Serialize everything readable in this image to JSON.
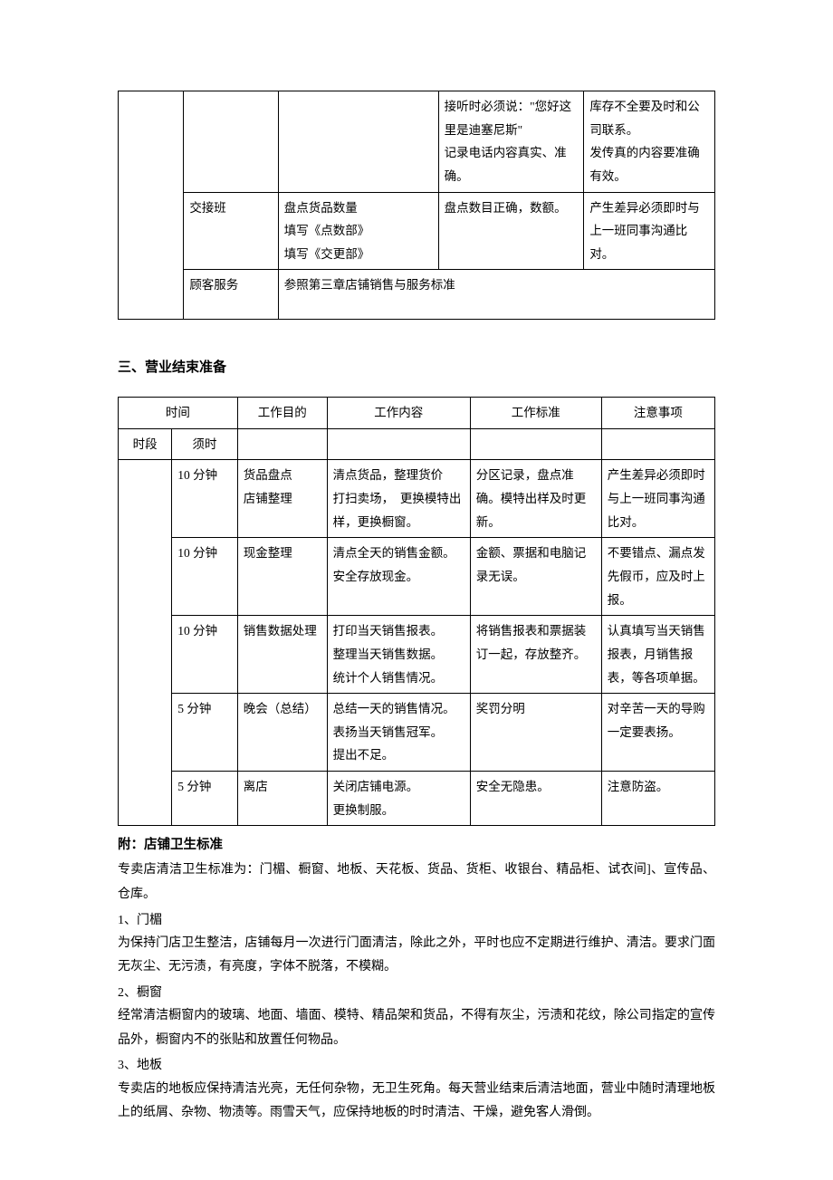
{
  "table1": {
    "rows": [
      {
        "c3": "",
        "c4": "接听时必须说：\"您好这里是迪塞尼斯\"\n记录电话内容真实、准确。",
        "c5": "库存不全要及时和公司联系。\n发传真的内容要准确有效。"
      },
      {
        "c2": "交接班",
        "c3": "盘点货品数量\n填写《点数部》\n填写《交更部》",
        "c4": "盘点数目正确，数额。",
        "c5": "产生差异必须即时与上一班同事沟通比对。"
      },
      {
        "c2": "顾客服务",
        "c3span": "参照第三章店铺销售与服务标准"
      }
    ]
  },
  "section_title": "三、营业结束准备",
  "table2": {
    "headers": {
      "time": "时间",
      "seg": "时段",
      "dur": "须时",
      "purpose": "工作目的",
      "content": "工作内容",
      "standard": "工作标准",
      "note": "注意事项"
    },
    "rows": [
      {
        "dur": "10 分钟",
        "purpose": "货品盘点\n店铺整理",
        "content": "清点货品，整理货价\n打扫卖场，　更换模特出样，更换橱窗。",
        "standard": "分区记录，盘点准确。模特出样及时更新。",
        "note": "产生差异必须即时与上一班同事沟通比对。"
      },
      {
        "dur": "10 分钟",
        "purpose": "现金整理",
        "content": "清点全天的销售金额。\n安全存放现金。",
        "standard": "金额、票据和电脑记录无误。",
        "note": "不要错点、漏点发先假币，应及时上报。"
      },
      {
        "dur": "10 分钟",
        "purpose": "销售数据处理",
        "content": "打印当天销售报表。\n整理当天销售数据。\n统计个人销售情况。",
        "standard": "将销售报表和票据装订一起，存放整齐。",
        "note": "认真填写当天销售报表，月销售报表，等各项单据。"
      },
      {
        "dur": "5 分钟",
        "purpose": "晚会（总结）",
        "content": "总结一天的销售情况。\n表扬当天销售冠军。\n提出不足。",
        "standard": "奖罚分明",
        "note": "对辛苦一天的导购一定要表扬。"
      },
      {
        "dur": "5 分钟",
        "purpose": "离店",
        "content": "关闭店铺电源。\n更换制服。",
        "standard": "安全无隐患。",
        "note": "注意防盗。"
      }
    ]
  },
  "appendix": {
    "title": "附：店铺卫生标准",
    "intro": "专卖店清洁卫生标准为：门楣、橱窗、地板、天花板、货品、货柜、收银台、精品柜、试衣间]、宣传品、仓库。",
    "items": [
      {
        "num": "1、门楣",
        "text": "为保持门店卫生整洁，店铺每月一次进行门面清洁，除此之外，平时也应不定期进行维护、清洁。要求门面无灰尘、无污渍，有亮度，字体不脱落，不模糊。"
      },
      {
        "num": "2、橱窗",
        "text": "经常清洁橱窗内的玻璃、地面、墙面、模特、精品架和货品，不得有灰尘，污渍和花纹，除公司指定的宣传品外，橱窗内不的张贴和放置任何物品。"
      },
      {
        "num": "3、地板",
        "text": "专卖店的地板应保持清洁光亮，无任何杂物，无卫生死角。每天营业结束后清洁地面，营业中随时清理地板上的纸屑、杂物、物渍等。雨雪天气，应保持地板的时时清洁、干燥，避免客人滑倒。"
      }
    ]
  }
}
